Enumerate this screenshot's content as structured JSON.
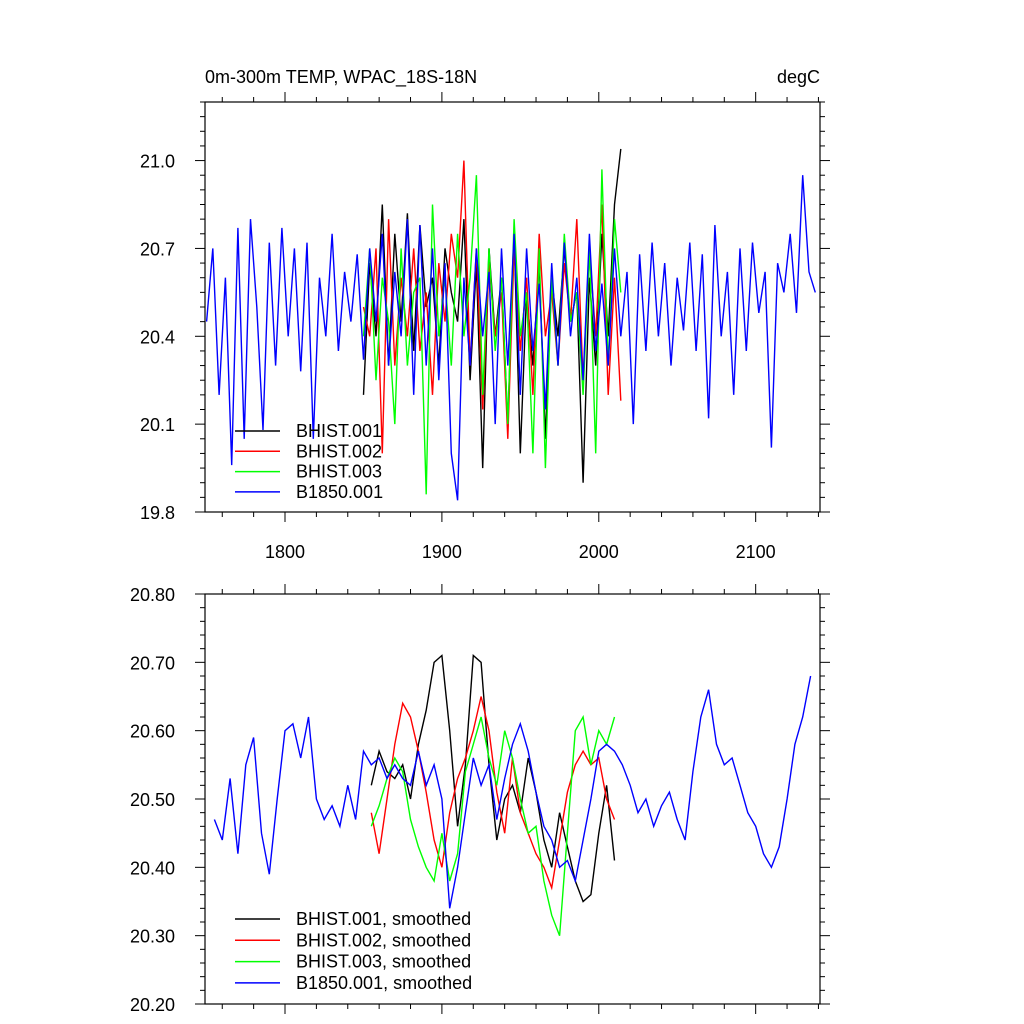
{
  "chart_data": [
    {
      "type": "line",
      "title": "0m-300m TEMP, WPAC_18S-18N",
      "units": "degC",
      "xlim": [
        1749,
        2141
      ],
      "ylim": [
        19.8,
        21.2
      ],
      "xticks": [
        1800,
        1900,
        2000,
        2100
      ],
      "xtick_labels": [
        "1800",
        "1900",
        "2000",
        "2100"
      ],
      "yticks": [
        19.8,
        20.1,
        20.4,
        20.7,
        21.0
      ],
      "ytick_labels": [
        "19.8",
        "20.1",
        "20.4",
        "20.7",
        "21.0"
      ],
      "legend_position": "bottom-left",
      "series": [
        {
          "name": "BHIST.001",
          "color": "#000000",
          "x_start": 1850,
          "x_step": 4,
          "values": [
            20.2,
            20.65,
            20.4,
            20.85,
            20.3,
            20.75,
            20.45,
            20.82,
            20.35,
            20.78,
            20.5,
            20.6,
            20.3,
            20.7,
            20.55,
            20.45,
            20.8,
            20.25,
            20.65,
            19.95,
            20.7,
            20.4,
            20.6,
            20.1,
            20.75,
            20.0,
            20.55,
            20.3,
            20.65,
            20.05,
            20.6,
            20.4,
            20.7,
            20.45,
            20.55,
            19.9,
            20.6,
            20.3,
            20.75,
            20.4,
            20.85,
            21.04
          ]
        },
        {
          "name": "BHIST.002",
          "color": "#ff0000",
          "x_start": 1850,
          "x_step": 4,
          "values": [
            20.5,
            20.4,
            20.7,
            20.0,
            20.8,
            20.3,
            20.6,
            20.4,
            20.7,
            20.35,
            20.55,
            20.2,
            20.65,
            20.45,
            20.75,
            20.6,
            21.0,
            20.3,
            20.7,
            20.15,
            20.65,
            20.4,
            20.55,
            20.05,
            20.7,
            20.35,
            20.6,
            20.2,
            20.75,
            20.4,
            20.55,
            20.3,
            20.65,
            20.45,
            20.8,
            20.25,
            20.7,
            20.4,
            20.85,
            20.2,
            20.6,
            20.18
          ]
        },
        {
          "name": "BHIST.003",
          "color": "#00ff00",
          "x_start": 1850,
          "x_step": 4,
          "values": [
            20.4,
            20.7,
            20.25,
            20.6,
            20.45,
            20.1,
            20.7,
            20.3,
            20.55,
            20.6,
            19.86,
            20.85,
            20.4,
            20.6,
            20.3,
            20.75,
            20.4,
            20.6,
            20.95,
            20.2,
            20.7,
            20.35,
            20.6,
            20.1,
            20.8,
            20.4,
            20.55,
            20.0,
            20.7,
            19.95,
            20.6,
            20.3,
            20.75,
            20.45,
            20.55,
            20.2,
            20.7,
            20.0,
            20.97,
            20.3,
            20.8,
            20.55
          ]
        },
        {
          "name": "B1850.001",
          "color": "#0000ff",
          "x_start": 1750,
          "x_step": 4,
          "values": [
            20.45,
            20.7,
            20.2,
            20.6,
            19.96,
            20.77,
            20.05,
            20.8,
            20.5,
            20.08,
            20.72,
            20.3,
            20.77,
            20.4,
            20.7,
            20.28,
            20.72,
            20.05,
            20.6,
            20.4,
            20.75,
            20.35,
            20.62,
            20.45,
            20.68,
            20.32,
            20.7,
            20.45,
            20.75,
            20.3,
            20.62,
            20.4,
            20.8,
            20.2,
            20.78,
            20.3,
            20.7,
            20.25,
            20.65,
            20.0,
            19.84,
            20.6,
            20.3,
            20.7,
            20.4,
            20.62,
            20.1,
            20.7,
            20.3,
            20.75,
            20.2,
            20.7,
            20.35,
            20.58,
            20.15,
            20.65,
            20.3,
            20.72,
            20.4,
            20.6,
            20.25,
            20.75,
            20.35,
            20.58,
            20.3,
            20.7,
            20.4,
            20.62,
            20.1,
            20.68,
            20.35,
            20.72,
            20.4,
            20.65,
            20.3,
            20.6,
            20.42,
            20.72,
            20.35,
            20.68,
            20.12,
            20.78,
            20.4,
            20.62,
            20.2,
            20.7,
            20.35,
            20.72,
            20.48,
            20.62,
            20.02,
            20.65,
            20.55,
            20.75,
            20.48,
            20.95,
            20.62,
            20.55
          ]
        }
      ]
    },
    {
      "type": "line",
      "title": "",
      "xlim": [
        1749,
        2141
      ],
      "ylim": [
        20.2,
        20.8
      ],
      "yticks": [
        20.2,
        20.3,
        20.4,
        20.5,
        20.6,
        20.7,
        20.8
      ],
      "ytick_labels": [
        "20.20",
        "20.30",
        "20.40",
        "20.50",
        "20.60",
        "20.70",
        "20.80"
      ],
      "legend_position": "bottom-left",
      "series": [
        {
          "name": "BHIST.001, smoothed",
          "color": "#000000",
          "x_start": 1855,
          "x_step": 5,
          "values": [
            20.52,
            20.57,
            20.54,
            20.53,
            20.55,
            20.5,
            20.58,
            20.63,
            20.7,
            20.71,
            20.6,
            20.46,
            20.55,
            20.71,
            20.7,
            20.55,
            20.44,
            20.5,
            20.52,
            20.48,
            20.56,
            20.51,
            20.44,
            20.4,
            20.48,
            20.43,
            20.38,
            20.35,
            20.36,
            20.45,
            20.52,
            20.41
          ]
        },
        {
          "name": "BHIST.002, smoothed",
          "color": "#ff0000",
          "x_start": 1855,
          "x_step": 5,
          "values": [
            20.48,
            20.42,
            20.5,
            20.58,
            20.64,
            20.62,
            20.57,
            20.51,
            20.44,
            20.4,
            20.48,
            20.53,
            20.56,
            20.6,
            20.65,
            20.6,
            20.51,
            20.45,
            20.56,
            20.48,
            20.45,
            20.42,
            20.4,
            20.37,
            20.44,
            20.51,
            20.55,
            20.57,
            20.55,
            20.56,
            20.5,
            20.47
          ]
        },
        {
          "name": "BHIST.003, smoothed",
          "color": "#00ff00",
          "x_start": 1855,
          "x_step": 5,
          "values": [
            20.46,
            20.49,
            20.53,
            20.56,
            20.54,
            20.47,
            20.43,
            20.4,
            20.38,
            20.45,
            20.38,
            20.42,
            20.54,
            20.58,
            20.62,
            20.56,
            20.52,
            20.6,
            20.56,
            20.5,
            20.45,
            20.46,
            20.38,
            20.33,
            20.3,
            20.45,
            20.6,
            20.62,
            20.55,
            20.6,
            20.58,
            20.62
          ]
        },
        {
          "name": "B1850.001, smoothed",
          "color": "#0000ff",
          "x_start": 1755,
          "x_step": 5,
          "values": [
            20.47,
            20.44,
            20.53,
            20.42,
            20.55,
            20.59,
            20.45,
            20.39,
            20.5,
            20.6,
            20.61,
            20.56,
            20.62,
            20.5,
            20.47,
            20.49,
            20.46,
            20.52,
            20.47,
            20.57,
            20.55,
            20.56,
            20.53,
            20.55,
            20.53,
            20.52,
            20.57,
            20.52,
            20.55,
            20.5,
            20.34,
            20.4,
            20.48,
            20.56,
            20.52,
            20.55,
            20.47,
            20.53,
            20.58,
            20.61,
            20.57,
            20.51,
            20.46,
            20.44,
            20.4,
            20.41,
            20.38,
            20.44,
            20.5,
            20.57,
            20.58,
            20.57,
            20.55,
            20.52,
            20.48,
            20.5,
            20.46,
            20.49,
            20.51,
            20.47,
            20.44,
            20.54,
            20.62,
            20.66,
            20.58,
            20.55,
            20.56,
            20.52,
            20.48,
            20.46,
            20.42,
            20.4,
            20.43,
            20.5,
            20.58,
            20.62,
            20.68
          ]
        }
      ]
    }
  ]
}
